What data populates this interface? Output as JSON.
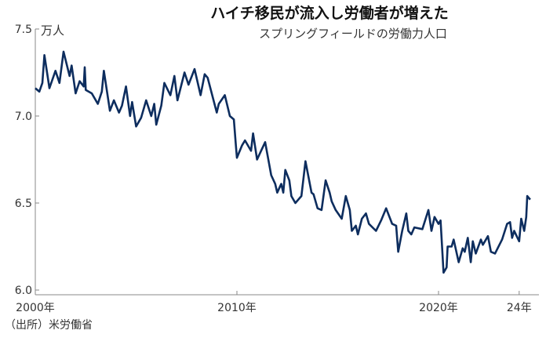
{
  "chart_data": {
    "type": "line",
    "title": "ハイチ移民が流入し労働者が増えた",
    "subtitle": "スプリングフィールドの労働力人口",
    "ylabel": "万人",
    "xlabel": "",
    "ylim": [
      6.0,
      7.5
    ],
    "xlim": [
      2000,
      2025
    ],
    "yticks": [
      {
        "value": 7.5,
        "label": "7.5"
      },
      {
        "value": 7.0,
        "label": "7.0"
      },
      {
        "value": 6.5,
        "label": "6.5"
      },
      {
        "value": 6.0,
        "label": "6.0"
      }
    ],
    "xticks": [
      {
        "value": 2000,
        "label": "2000年"
      },
      {
        "value": 2010,
        "label": "2010年"
      },
      {
        "value": 2020,
        "label": "2020年"
      },
      {
        "value": 2024,
        "label": "24年"
      }
    ],
    "grid": false,
    "line_color": "#0d2d5e",
    "series": [
      {
        "name": "労働力人口",
        "x": [
          2000.0,
          2000.2,
          2000.35,
          2000.45,
          2000.7,
          2001.0,
          2001.2,
          2001.4,
          2001.7,
          2001.8,
          2002.0,
          2002.2,
          2002.4,
          2002.45,
          2002.5,
          2002.8,
          2003.1,
          2003.3,
          2003.4,
          2003.7,
          2003.9,
          2004.15,
          2004.3,
          2004.5,
          2004.7,
          2004.8,
          2005.0,
          2005.25,
          2005.5,
          2005.75,
          2005.9,
          2006.0,
          2006.25,
          2006.4,
          2006.7,
          2006.9,
          2007.05,
          2007.4,
          2007.6,
          2007.9,
          2008.2,
          2008.4,
          2008.55,
          2009.0,
          2009.1,
          2009.4,
          2009.65,
          2009.85,
          2009.95,
          2010.0,
          2010.25,
          2010.4,
          2010.7,
          2010.8,
          2011.0,
          2011.2,
          2011.4,
          2011.7,
          2011.9,
          2012.0,
          2012.2,
          2012.3,
          2012.4,
          2012.6,
          2012.7,
          2012.9,
          2013.2,
          2013.4,
          2013.7,
          2013.8,
          2014.0,
          2014.2,
          2014.4,
          2014.6,
          2014.7,
          2014.9,
          2015.2,
          2015.4,
          2015.6,
          2015.7,
          2015.9,
          2016.0,
          2016.2,
          2016.4,
          2016.55,
          2016.9,
          2017.15,
          2017.4,
          2017.7,
          2017.9,
          2018.0,
          2018.2,
          2018.4,
          2018.5,
          2018.65,
          2018.8,
          2019.2,
          2019.5,
          2019.65,
          2019.8,
          2020.0,
          2020.1,
          2020.25,
          2020.4,
          2020.45,
          2020.65,
          2020.75,
          2021.0,
          2021.2,
          2021.3,
          2021.45,
          2021.6,
          2021.7,
          2021.85,
          2022.1,
          2022.2,
          2022.45,
          2022.6,
          2022.8,
          2023.15,
          2023.4,
          2023.55,
          2023.65,
          2023.75,
          2024.0,
          2024.1,
          2024.25,
          2024.35,
          2024.4,
          2024.55
        ],
        "y": [
          7.16,
          7.14,
          7.19,
          7.35,
          7.16,
          7.26,
          7.19,
          7.37,
          7.23,
          7.29,
          7.13,
          7.2,
          7.17,
          7.28,
          7.15,
          7.13,
          7.07,
          7.14,
          7.26,
          7.03,
          7.09,
          7.02,
          7.06,
          7.17,
          7.0,
          7.08,
          6.94,
          6.99,
          7.09,
          7.0,
          7.07,
          6.95,
          7.06,
          7.19,
          7.12,
          7.23,
          7.09,
          7.25,
          7.18,
          7.27,
          7.12,
          7.24,
          7.22,
          7.02,
          7.07,
          7.12,
          7.0,
          6.98,
          6.83,
          6.76,
          6.83,
          6.86,
          6.8,
          6.9,
          6.75,
          6.8,
          6.85,
          6.66,
          6.61,
          6.56,
          6.61,
          6.56,
          6.69,
          6.63,
          6.54,
          6.5,
          6.54,
          6.74,
          6.56,
          6.55,
          6.47,
          6.46,
          6.63,
          6.56,
          6.51,
          6.46,
          6.41,
          6.54,
          6.46,
          6.34,
          6.37,
          6.32,
          6.41,
          6.44,
          6.38,
          6.34,
          6.4,
          6.47,
          6.38,
          6.37,
          6.22,
          6.34,
          6.44,
          6.34,
          6.32,
          6.36,
          6.35,
          6.46,
          6.34,
          6.42,
          6.38,
          6.4,
          6.1,
          6.13,
          6.25,
          6.25,
          6.29,
          6.16,
          6.24,
          6.22,
          6.3,
          6.16,
          6.28,
          6.21,
          6.29,
          6.26,
          6.31,
          6.22,
          6.21,
          6.29,
          6.38,
          6.39,
          6.3,
          6.34,
          6.28,
          6.41,
          6.34,
          6.42,
          6.54,
          6.52
        ]
      }
    ]
  },
  "source": "（出所）米労働省"
}
